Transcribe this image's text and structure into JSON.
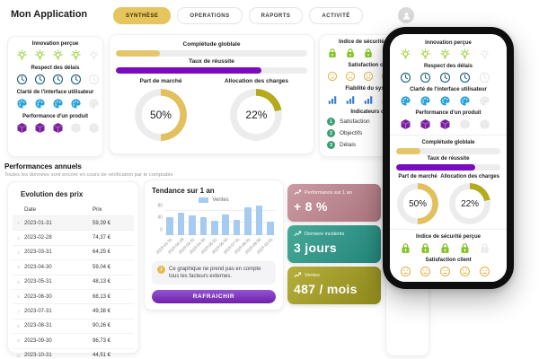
{
  "header": {
    "title": "Mon Application",
    "tabs": [
      {
        "label": "SYNTHÈSE",
        "active": true
      },
      {
        "label": "OPERATIONS",
        "active": false
      },
      {
        "label": "RAPORTS",
        "active": false
      },
      {
        "label": "ACTIVITÉ",
        "active": false
      }
    ],
    "avatar_icon": "user-icon"
  },
  "colors": {
    "accent_gold": "#e6c55e",
    "accent_purple": "#7a0bbf",
    "accent_olive": "#b3aa1c",
    "chart_bar_blue": "#a6cbf0"
  },
  "icons": {
    "info_glyph": "i"
  },
  "ratings_card": {
    "items": [
      {
        "label": "Innovation perçue",
        "icon": "bulb",
        "value": 4,
        "max": 5,
        "color": "#9bcc2f"
      },
      {
        "label": "Respect des délais",
        "icon": "clock",
        "value": 4,
        "max": 5,
        "color": "#2b6b7c"
      },
      {
        "label": "Clarté de l'interface utilisateur",
        "icon": "palette",
        "value": 4,
        "max": 5,
        "color": "#2aa3d9"
      },
      {
        "label": "Performance d'un produit",
        "icon": "cube",
        "value": 3,
        "max": 5,
        "color": "#7b1fa2"
      }
    ]
  },
  "progress_card": {
    "bars": [
      {
        "label": "Complétude globlale",
        "value_label": "23%",
        "percent": 23,
        "color": "#e4c76d"
      },
      {
        "label": "Taux de réussite",
        "value_label": "76%",
        "percent": 76,
        "color": "#7a0bbf"
      }
    ],
    "donuts": [
      {
        "label": "Part de marché",
        "value_label": "50%",
        "percent": 50,
        "color": "#e2c05e"
      },
      {
        "label": "Allocation des charges",
        "value_label": "22%",
        "percent": 22,
        "color": "#b3aa1c"
      }
    ]
  },
  "indicators_card": {
    "items": [
      {
        "label": "Indice de sécurité perçue",
        "icon": "lock",
        "value": 4,
        "max": 5,
        "color": "#85c226"
      },
      {
        "label": "Satisfaction client",
        "icon": "smiley",
        "value": 5,
        "max": 5,
        "color": "#dfb850"
      },
      {
        "label": "Fiabilité du système",
        "icon": "signal",
        "value": 4,
        "max": 5,
        "color": "#3a82d2"
      }
    ],
    "legend_title": "Indicateurs clés",
    "legend": [
      {
        "num": "1",
        "label": "Satisfaction",
        "color": "#3a9e74"
      },
      {
        "num": "2",
        "label": "Objectifs",
        "color": "#3a9e74"
      },
      {
        "num": "3",
        "label": "Délais",
        "color": "#3a9e74"
      }
    ]
  },
  "annual_section": {
    "title": "Performances annuels",
    "subtitle": "Toutes les données sont encore en cours de vérification par le comptable"
  },
  "price_table": {
    "title": "Evolution des prix",
    "columns": [
      "Date",
      "Prix"
    ],
    "rows": [
      {
        "num": "1",
        "date": "2023-01-31",
        "price": "59,39 €"
      },
      {
        "num": "2",
        "date": "2023-02-28",
        "price": "74,37 €"
      },
      {
        "num": "3",
        "date": "2023-03-31",
        "price": "64,25 €"
      },
      {
        "num": "4",
        "date": "2023-04-30",
        "price": "59,04 €"
      },
      {
        "num": "5",
        "date": "2023-05-31",
        "price": "48,13 €"
      },
      {
        "num": "6",
        "date": "2023-06-30",
        "price": "68,13 €"
      },
      {
        "num": "7",
        "date": "2023-07-31",
        "price": "49,38 €"
      },
      {
        "num": "8",
        "date": "2023-08-31",
        "price": "90,26 €"
      },
      {
        "num": "9",
        "date": "2023-09-30",
        "price": "96,73 €"
      },
      {
        "num": "10",
        "date": "2023-10-31",
        "price": "44,51 €"
      }
    ]
  },
  "chart_data": {
    "type": "bar",
    "title": "Tendance sur 1 an",
    "legend": [
      "Ventes"
    ],
    "categories": [
      "2023-01-31",
      "2023-02-28",
      "2023-03-31",
      "2023-04-30",
      "2023-05-31",
      "2023-06-30",
      "2023-07-31",
      "2023-08-31",
      "2023-09-30",
      "2023-10-31"
    ],
    "values": [
      59.39,
      74.37,
      64.25,
      59.04,
      48.13,
      68.13,
      49.38,
      90.26,
      96.73,
      44.51
    ],
    "yticks": [
      0,
      40,
      80
    ],
    "ylim": [
      0,
      100
    ],
    "bar_color": "#a6cbf0",
    "note": "Ce graphique ne prend pas en compte tous les facteurs externes.",
    "refresh_label": "RAFRAICHIR"
  },
  "kpi_cards": [
    {
      "label": "Performance sur 1 an",
      "value": "+ 8 %",
      "gradient": [
        "#cb9aa2",
        "#ab747e"
      ]
    },
    {
      "label": "Derniere incidents",
      "value": "3 jours",
      "gradient": [
        "#47a997",
        "#23857a"
      ]
    },
    {
      "label": "Ventes",
      "value": "487 / mois",
      "gradient": [
        "#b6af3c",
        "#8d881b"
      ]
    }
  ]
}
